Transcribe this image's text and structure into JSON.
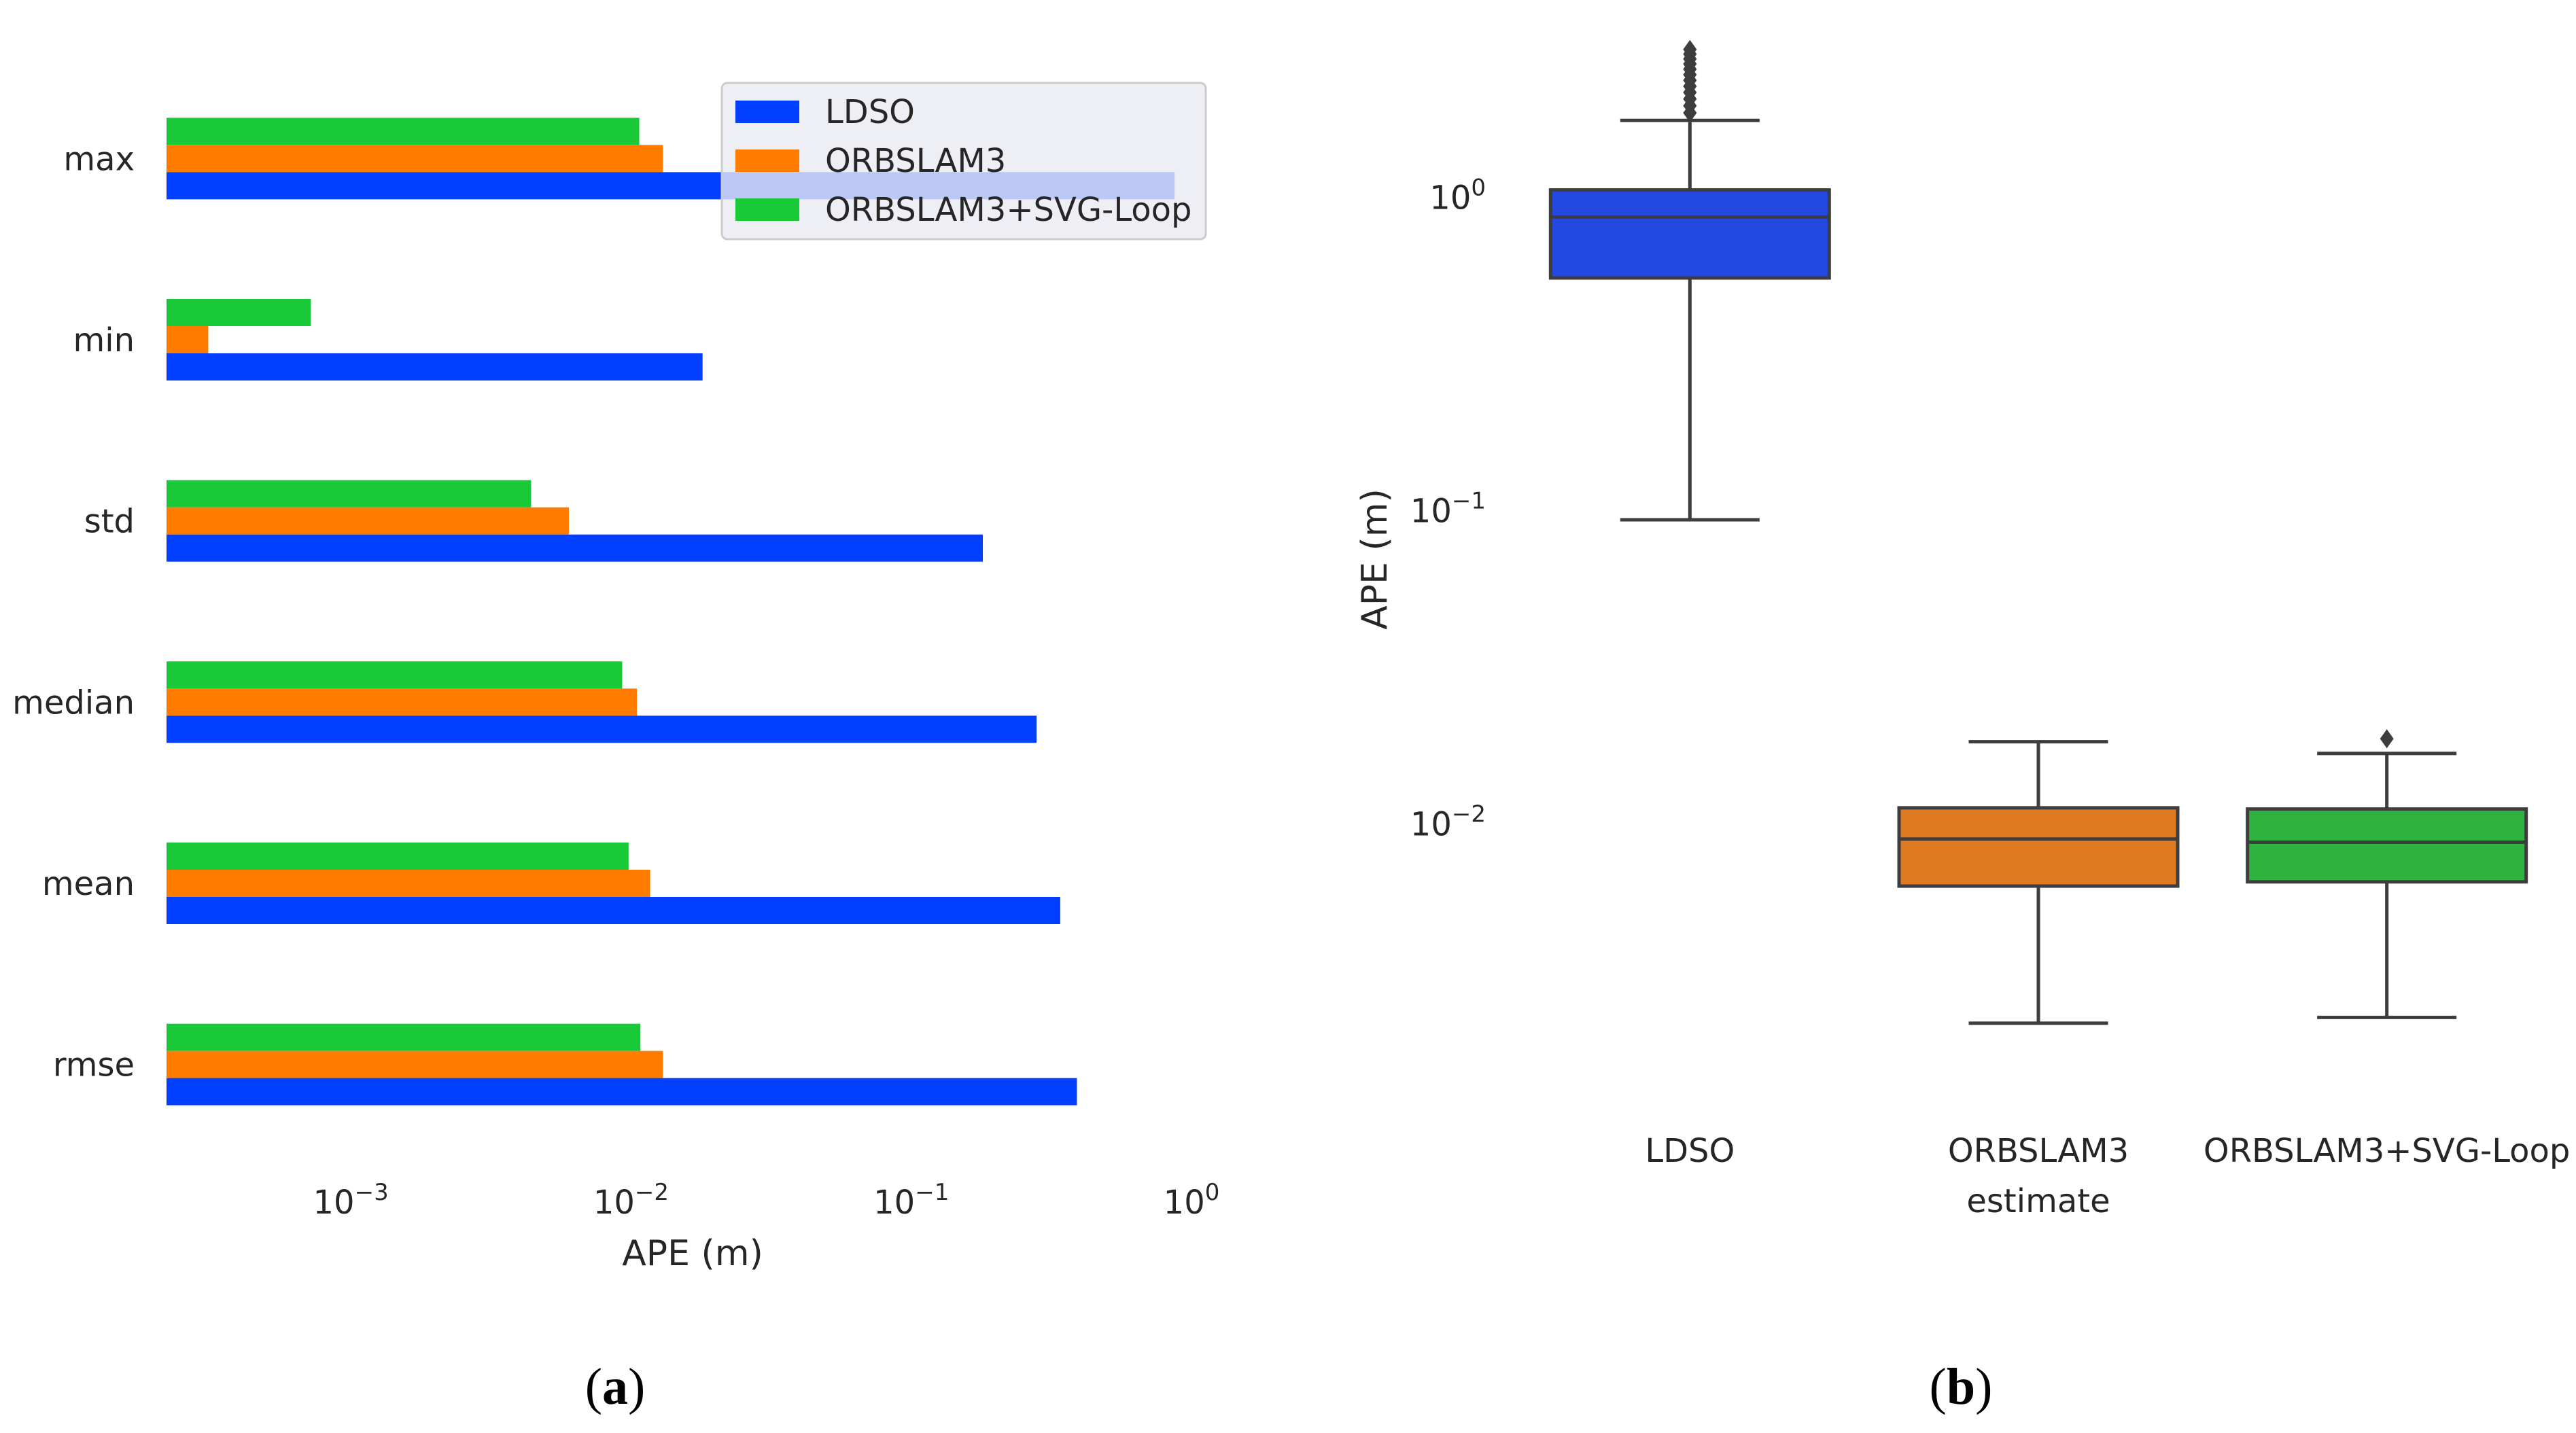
{
  "captions": [
    "(a)",
    "(b)"
  ],
  "colors": {
    "LDSO": "#023eff",
    "ORBSLAM3": "#ff7c00",
    "ORBSLAM3+SVG-Loop": "#1ac938",
    "box_LDSO": "#2349e0",
    "box_ORBSLAM3": "#e07a22",
    "box_SVG": "#2eb340",
    "panel_bg": "#eaeaf2",
    "grid": "#ffffff"
  },
  "chart_data": [
    {
      "type": "bar",
      "orientation": "horizontal",
      "caption": "(a)",
      "categories": [
        "max",
        "min",
        "std",
        "median",
        "mean",
        "rmse"
      ],
      "series": [
        {
          "name": "LDSO",
          "values": [
            0.87,
            0.018,
            0.18,
            0.28,
            0.34,
            0.39
          ]
        },
        {
          "name": "ORBSLAM3",
          "values": [
            0.013,
            0.00031,
            0.006,
            0.0105,
            0.0117,
            0.013
          ]
        },
        {
          "name": "ORBSLAM3+SVG-Loop",
          "values": [
            0.0107,
            0.00072,
            0.0044,
            0.0093,
            0.0098,
            0.0108
          ]
        }
      ],
      "xlabel": "APE (m)",
      "xscale": "log",
      "xlim": [
        0.00022,
        1.25
      ],
      "xticks": [
        0.001,
        0.01,
        0.1,
        1
      ],
      "xtick_labels": [
        {
          "base": "10",
          "exp": "−3"
        },
        {
          "base": "10",
          "exp": "−2"
        },
        {
          "base": "10",
          "exp": "−1"
        },
        {
          "base": "10",
          "exp": "0"
        }
      ],
      "legend": {
        "entries": [
          "LDSO",
          "ORBSLAM3",
          "ORBSLAM3+SVG-Loop"
        ],
        "placement": "upper-right"
      },
      "grid": true
    },
    {
      "type": "box",
      "caption": "(b)",
      "categories": [
        "LDSO",
        "ORBSLAM3",
        "ORBSLAM3+SVG-Loop"
      ],
      "category_labels": [
        [
          "LDSO"
        ],
        [
          "ORBSLAM3",
          "estimate"
        ],
        [
          "ORBSLAM3+SVG-Loop"
        ]
      ],
      "boxes": [
        {
          "name": "LDSO",
          "whisker_low": 0.093,
          "q1": 0.55,
          "median": 0.86,
          "q3": 1.05,
          "whisker_high": 1.75,
          "outliers": [
            1.85,
            1.95,
            2.05,
            2.15,
            2.25,
            2.35,
            2.45,
            2.55,
            2.65,
            2.75,
            2.85,
            2.95
          ]
        },
        {
          "name": "ORBSLAM3",
          "whisker_low": 0.0023,
          "q1": 0.0063,
          "median": 0.0089,
          "q3": 0.0112,
          "whisker_high": 0.0182,
          "outliers": []
        },
        {
          "name": "ORBSLAM3+SVG-Loop",
          "whisker_low": 0.0024,
          "q1": 0.0065,
          "median": 0.0087,
          "q3": 0.0111,
          "whisker_high": 0.0167,
          "outliers": [
            0.0186
          ]
        }
      ],
      "ylabel": "APE (m)",
      "yscale": "log",
      "ylim": [
        0.00125,
        3.8
      ],
      "yticks": [
        0.01,
        0.1,
        1
      ],
      "ytick_labels": [
        {
          "base": "10",
          "exp": "−2"
        },
        {
          "base": "10",
          "exp": "−1"
        },
        {
          "base": "10",
          "exp": "0"
        }
      ],
      "grid": true
    }
  ]
}
